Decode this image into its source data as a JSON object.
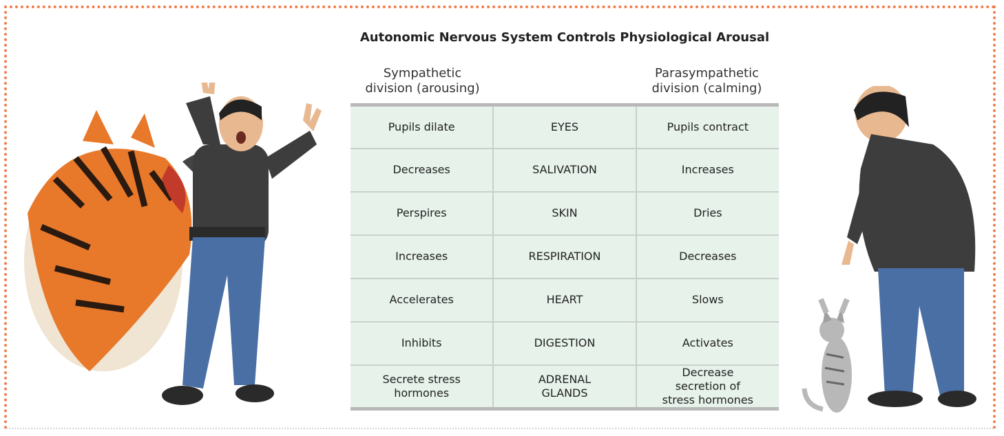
{
  "title": "Autonomic Nervous System Controls Physiological Arousal",
  "headers": {
    "left": "Sympathetic\ndivision (arousing)",
    "right": "Parasympathetic\ndivision (calming)"
  },
  "table": {
    "rows": [
      [
        "Pupils dilate",
        "EYES",
        "Pupils contract"
      ],
      [
        "Decreases",
        "SALIVATION",
        "Increases"
      ],
      [
        "Perspires",
        "SKIN",
        "Dries"
      ],
      [
        "Increases",
        "RESPIRATION",
        "Decreases"
      ],
      [
        "Accelerates",
        "HEART",
        "Slows"
      ],
      [
        "Inhibits",
        "DIGESTION",
        "Activates"
      ],
      [
        "Secrete stress hormones",
        "ADRENAL GLANDS",
        "Decrease secretion of stress hormones"
      ]
    ]
  }
}
